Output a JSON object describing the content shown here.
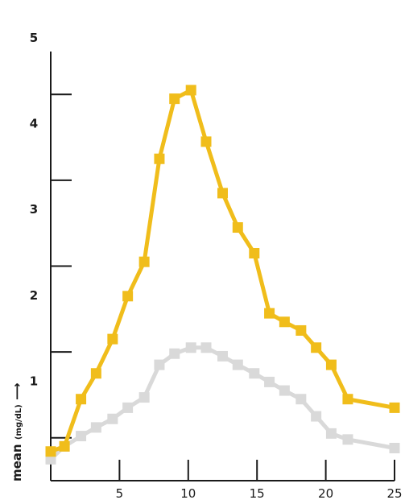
{
  "chart_data": {
    "type": "line",
    "title": "",
    "xlabel": "",
    "ylabel": "mean",
    "ylabel_unit": "(mg/dL)",
    "ylabel_arrow": "⟶",
    "xlim": [
      0,
      25
    ],
    "ylim": [
      0,
      5
    ],
    "x_ticks": [
      5,
      10,
      15,
      20,
      25
    ],
    "y_ticks": [
      1,
      2,
      3,
      4,
      5
    ],
    "y_minor_ticks": [
      0.5,
      1.5,
      2.5,
      3.5,
      4.5
    ],
    "grid": false,
    "legend": "none",
    "series": [
      {
        "color": "#f0bd1b",
        "marker": "square",
        "x": [
          0,
          1,
          2.2,
          3.3,
          4.5,
          5.6,
          6.8,
          7.9,
          9.0,
          10.2,
          11.3,
          12.5,
          13.6,
          14.8,
          15.9,
          17.0,
          18.2,
          19.3,
          20.4,
          21.6,
          25
        ],
        "y": [
          0.34,
          0.4,
          0.95,
          1.25,
          1.65,
          2.15,
          2.55,
          3.75,
          4.45,
          4.55,
          3.95,
          3.35,
          2.95,
          2.65,
          1.95,
          1.85,
          1.75,
          1.55,
          1.35,
          0.95,
          0.85
        ]
      },
      {
        "color": "#d9d9d9",
        "marker": "square",
        "x": [
          0,
          1,
          2.2,
          3.3,
          4.5,
          5.6,
          6.8,
          7.9,
          9.0,
          10.2,
          11.3,
          12.5,
          13.6,
          14.8,
          15.9,
          17.0,
          18.2,
          19.3,
          20.4,
          21.6,
          25
        ],
        "y": [
          0.25,
          0.4,
          0.52,
          0.62,
          0.72,
          0.85,
          0.97,
          1.35,
          1.48,
          1.55,
          1.55,
          1.45,
          1.35,
          1.25,
          1.15,
          1.05,
          0.95,
          0.75,
          0.55,
          0.48,
          0.38
        ]
      }
    ]
  }
}
